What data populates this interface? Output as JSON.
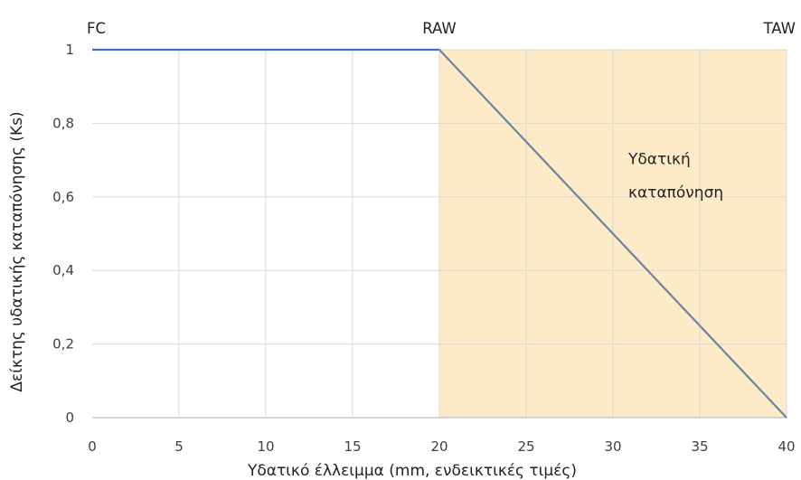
{
  "chart_data": {
    "type": "line",
    "title": "",
    "xlabel": "Υδατικό έλλειμμα (mm, ενδεικτικές τιμές)",
    "ylabel": "Δείκτης υδατικής καταπόνησης (Ks)",
    "xlim": [
      0,
      40
    ],
    "ylim": [
      0,
      1
    ],
    "x_ticks": [
      0,
      5,
      10,
      15,
      20,
      25,
      30,
      35,
      40
    ],
    "y_ticks": [
      0,
      0.2,
      0.4,
      0.6,
      0.8,
      1
    ],
    "x_tick_labels": [
      "0",
      "5",
      "10",
      "15",
      "20",
      "25",
      "30",
      "35",
      "40"
    ],
    "y_tick_labels": [
      "0",
      "0,2",
      "0,4",
      "0,6",
      "0,8",
      "1"
    ],
    "grid": true,
    "legend": "none",
    "series": [
      {
        "points": [
          {
            "x": 0,
            "y": 1
          },
          {
            "x": 20,
            "y": 1
          }
        ],
        "color": "#4472C4"
      },
      {
        "points": [
          {
            "x": 20,
            "y": 1
          },
          {
            "x": 40,
            "y": 0
          }
        ],
        "color": "#6F83A6"
      }
    ],
    "shaded_region": {
      "x_start": 20,
      "x_end": 40,
      "color": "#FCEBC6"
    },
    "top_labels": [
      {
        "x": 0,
        "text": "FC"
      },
      {
        "x": 20,
        "text": "RAW"
      },
      {
        "x": 40,
        "text": "TAW"
      }
    ],
    "annotation": {
      "x": 31.5,
      "y": 0.62,
      "lines": [
        "Υδατική",
        "καταπόνηση"
      ]
    }
  }
}
